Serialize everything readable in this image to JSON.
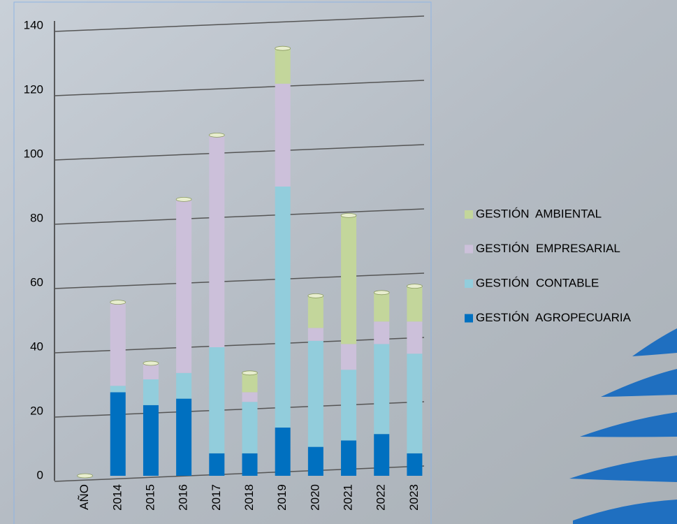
{
  "chart_data": {
    "type": "stacked_bar",
    "categories": [
      "AÑO",
      "2014",
      "2015",
      "2016",
      "2017",
      "2018",
      "2019",
      "2020",
      "2021",
      "2022",
      "2023"
    ],
    "series": [
      {
        "name": "GESTIÓN  AGROPECUARIA",
        "color": "#0070c0",
        "values": [
          0,
          26,
          22,
          24,
          7,
          7,
          15,
          9,
          11,
          13,
          7
        ]
      },
      {
        "name": "GESTIÓN  CONTABLE",
        "color": "#92cddc",
        "values": [
          0,
          2,
          8,
          8,
          33,
          16,
          75,
          33,
          22,
          28,
          31
        ]
      },
      {
        "name": "GESTIÓN  EMPRESARIAL",
        "color": "#ccc0da",
        "values": [
          0,
          26,
          5,
          54,
          66,
          3,
          32,
          4,
          8,
          7,
          10
        ]
      },
      {
        "name": "GESTIÓN  AMBIENTAL",
        "color": "#c3d69b",
        "values": [
          0,
          0,
          0,
          0,
          0,
          6,
          11,
          10,
          40,
          9,
          11
        ]
      }
    ],
    "ylim": [
      0,
      140
    ],
    "yticks": [
      0,
      20,
      40,
      60,
      80,
      100,
      120,
      140
    ],
    "grid": true,
    "legend": "right"
  }
}
